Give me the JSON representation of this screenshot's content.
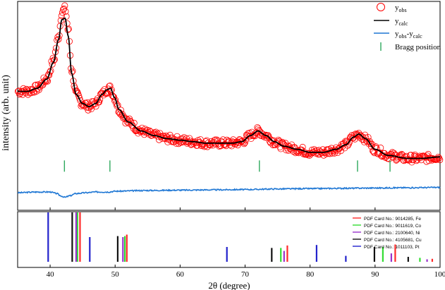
{
  "chart_data": {
    "type": "line",
    "xlabel": "2θ (degree)",
    "ylabel": "intensity (arb. unit)",
    "xlim": [
      35,
      100
    ],
    "x_ticks": [
      40,
      50,
      60,
      70,
      80,
      90,
      100
    ],
    "grid": false,
    "legend_position": "top-right",
    "upper_panel": {
      "ylim": [
        -0.32,
        1.05
      ],
      "series": [
        {
          "name": "y_obs",
          "legend": {
            "main": "y",
            "sub": "obs"
          },
          "style": "open-circles",
          "color": "#ff0000",
          "x": [
            35,
            36.5,
            38,
            39.5,
            40.5,
            41.3,
            41.8,
            42.3,
            42.8,
            43.3,
            44,
            45,
            46,
            47,
            48,
            48.7,
            49.3,
            49.9,
            50.6,
            52,
            54,
            56,
            58,
            60,
            62,
            64,
            66,
            68,
            69.5,
            70.8,
            72,
            73.2,
            74.5,
            76,
            78,
            80,
            82,
            84,
            85.5,
            86.7,
            87.5,
            88.5,
            90,
            92,
            95,
            97,
            100
          ],
          "y": [
            0.46,
            0.46,
            0.48,
            0.54,
            0.66,
            0.82,
            0.98,
            1.0,
            0.86,
            0.6,
            0.44,
            0.38,
            0.36,
            0.38,
            0.44,
            0.47,
            0.48,
            0.42,
            0.34,
            0.26,
            0.2,
            0.17,
            0.15,
            0.14,
            0.13,
            0.12,
            0.12,
            0.12,
            0.13,
            0.17,
            0.2,
            0.17,
            0.13,
            0.1,
            0.08,
            0.06,
            0.06,
            0.08,
            0.11,
            0.16,
            0.18,
            0.15,
            0.08,
            0.04,
            0.02,
            0.02,
            0.03
          ]
        },
        {
          "name": "y_calc",
          "legend": {
            "main": "y",
            "sub": "calc"
          },
          "style": "line",
          "color": "#000000",
          "x": [
            35,
            36.5,
            38,
            39.5,
            40.5,
            41.3,
            41.8,
            42.3,
            42.8,
            43.3,
            44,
            45,
            46,
            47,
            48,
            48.7,
            49.3,
            49.9,
            50.6,
            52,
            54,
            56,
            58,
            60,
            62,
            64,
            66,
            68,
            69.5,
            70.8,
            72,
            73.2,
            74.5,
            76,
            78,
            80,
            82,
            84,
            85.5,
            86.7,
            87.5,
            88.5,
            90,
            92,
            95,
            97,
            100
          ],
          "y": [
            0.46,
            0.46,
            0.48,
            0.54,
            0.65,
            0.8,
            0.93,
            0.94,
            0.82,
            0.58,
            0.44,
            0.38,
            0.36,
            0.38,
            0.44,
            0.47,
            0.48,
            0.42,
            0.34,
            0.26,
            0.2,
            0.17,
            0.15,
            0.14,
            0.13,
            0.12,
            0.12,
            0.12,
            0.13,
            0.17,
            0.2,
            0.17,
            0.13,
            0.1,
            0.08,
            0.06,
            0.06,
            0.08,
            0.11,
            0.16,
            0.18,
            0.15,
            0.08,
            0.04,
            0.02,
            0.02,
            0.03
          ]
        },
        {
          "name": "y_obs-y_calc",
          "legend": {
            "main": "y",
            "sub": "obs",
            "main2": "-y",
            "sub2": "calc"
          },
          "style": "line",
          "color": "#1f77d4",
          "x": [
            35,
            38,
            40,
            41,
            41.6,
            42.3,
            43,
            44,
            45.5,
            47,
            49,
            50,
            55,
            60,
            65,
            70,
            75,
            80,
            85,
            90,
            95,
            100
          ],
          "y": [
            -0.205,
            -0.2,
            -0.2,
            -0.21,
            -0.225,
            -0.235,
            -0.225,
            -0.21,
            -0.205,
            -0.2,
            -0.2,
            -0.195,
            -0.19,
            -0.188,
            -0.186,
            -0.184,
            -0.18,
            -0.178,
            -0.176,
            -0.174,
            -0.172,
            -0.17
          ]
        }
      ],
      "bragg": {
        "legend": "Bragg position",
        "color": "#2ca85c",
        "positions": [
          42.2,
          49.2,
          72.2,
          87.3,
          92.3
        ],
        "level": -0.03
      }
    },
    "lower_panel": {
      "cards": [
        {
          "name": "PDF Card No.: 9014285, Fe",
          "color": "#ff2a2a",
          "peaks": [
            [
              44.6,
              1.0
            ],
            [
              51.8,
              0.55
            ],
            [
              76.5,
              0.33
            ],
            [
              93.1,
              0.35
            ],
            [
              98.8,
              0.06
            ]
          ]
        },
        {
          "name": "PDF Card No.: 9011619, Co",
          "color": "#33dd33",
          "peaks": [
            [
              44.2,
              1.0
            ],
            [
              51.5,
              0.52
            ],
            [
              75.5,
              0.28
            ],
            [
              91.2,
              0.3
            ],
            [
              96.9,
              0.08
            ]
          ]
        },
        {
          "name": "PDF Card No.: 2100640, Ni",
          "color": "#9933cc",
          "peaks": [
            [
              44.0,
              1.0
            ],
            [
              51.2,
              0.5
            ],
            [
              76.0,
              0.22
            ],
            [
              92.5,
              0.17
            ],
            [
              98.0,
              0.05
            ]
          ]
        },
        {
          "name": "PDF Card No.: 4105681, Cu",
          "color": "#111111",
          "peaks": [
            [
              43.4,
              1.0
            ],
            [
              50.4,
              0.52
            ],
            [
              74.1,
              0.28
            ],
            [
              89.9,
              0.3
            ],
            [
              95.1,
              0.1
            ]
          ]
        },
        {
          "name": "PDF Card No.: 1011103, Pt",
          "color": "#2222cc",
          "peaks": [
            [
              39.7,
              1.0
            ],
            [
              46.1,
              0.5
            ],
            [
              67.2,
              0.3
            ],
            [
              81.0,
              0.34
            ],
            [
              85.5,
              0.12
            ]
          ]
        }
      ]
    }
  }
}
